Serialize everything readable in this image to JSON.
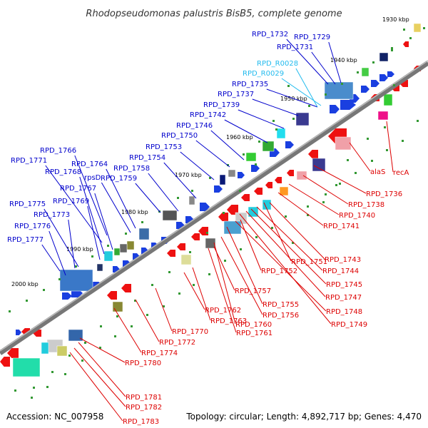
{
  "title": "Rhodopseudomonas palustris BisB5, complete genome",
  "footer": {
    "accession": "Accession: NC_007958",
    "summary": "Topology: circular; Length: 4,892,717 bp; Genes: 4,470"
  },
  "ticks": [
    "1930 kbp",
    "1940 kbp",
    "1950 kbp",
    "1960 kbp",
    "1970 kbp",
    "1980 kbp",
    "1990 kbp",
    "2000 kbp"
  ],
  "colors": {
    "forward_label": "#0000cc",
    "rna_label": "#22bbee",
    "reverse_label": "#dd0000",
    "backbone": "#777777",
    "tick_mark": "#339933"
  },
  "labels_forward": [
    "RPD_1732",
    "RPD_1729",
    "RPD_1731",
    "RPD_1735",
    "RPD_1737",
    "RPD_1739",
    "RPD_1742",
    "RPD_1746",
    "RPD_1750",
    "RPD_1753",
    "RPD_1754",
    "RPD_1758",
    "RPD_1759",
    "rpsD",
    "RPD_1764",
    "RPD_1766",
    "RPD_1771",
    "RPD_1768",
    "RPD_1767",
    "RPD_1769",
    "RPD_1775",
    "RPD_1773",
    "RPD_1776",
    "RPD_1777"
  ],
  "labels_rna": [
    "RPD_R0028",
    "RPD_R0029"
  ],
  "labels_reverse": [
    "recA",
    "alaS",
    "RPD_1736",
    "RPD_1738",
    "RPD_1740",
    "RPD_1741",
    "RPD_1743",
    "RPD_1751",
    "RPD_1744",
    "RPD_1752",
    "RPD_1745",
    "RPD_1747",
    "RPD_1757",
    "RPD_1755",
    "RPD_1748",
    "RPD_1756",
    "RPD_1762",
    "RPD_1760",
    "RPD_1763",
    "RPD_1749",
    "RPD_1761",
    "RPD_1770",
    "RPD_1772",
    "RPD_1774",
    "RPD_1780",
    "RPD_1781",
    "RPD_1782",
    "RPD_1783"
  ]
}
